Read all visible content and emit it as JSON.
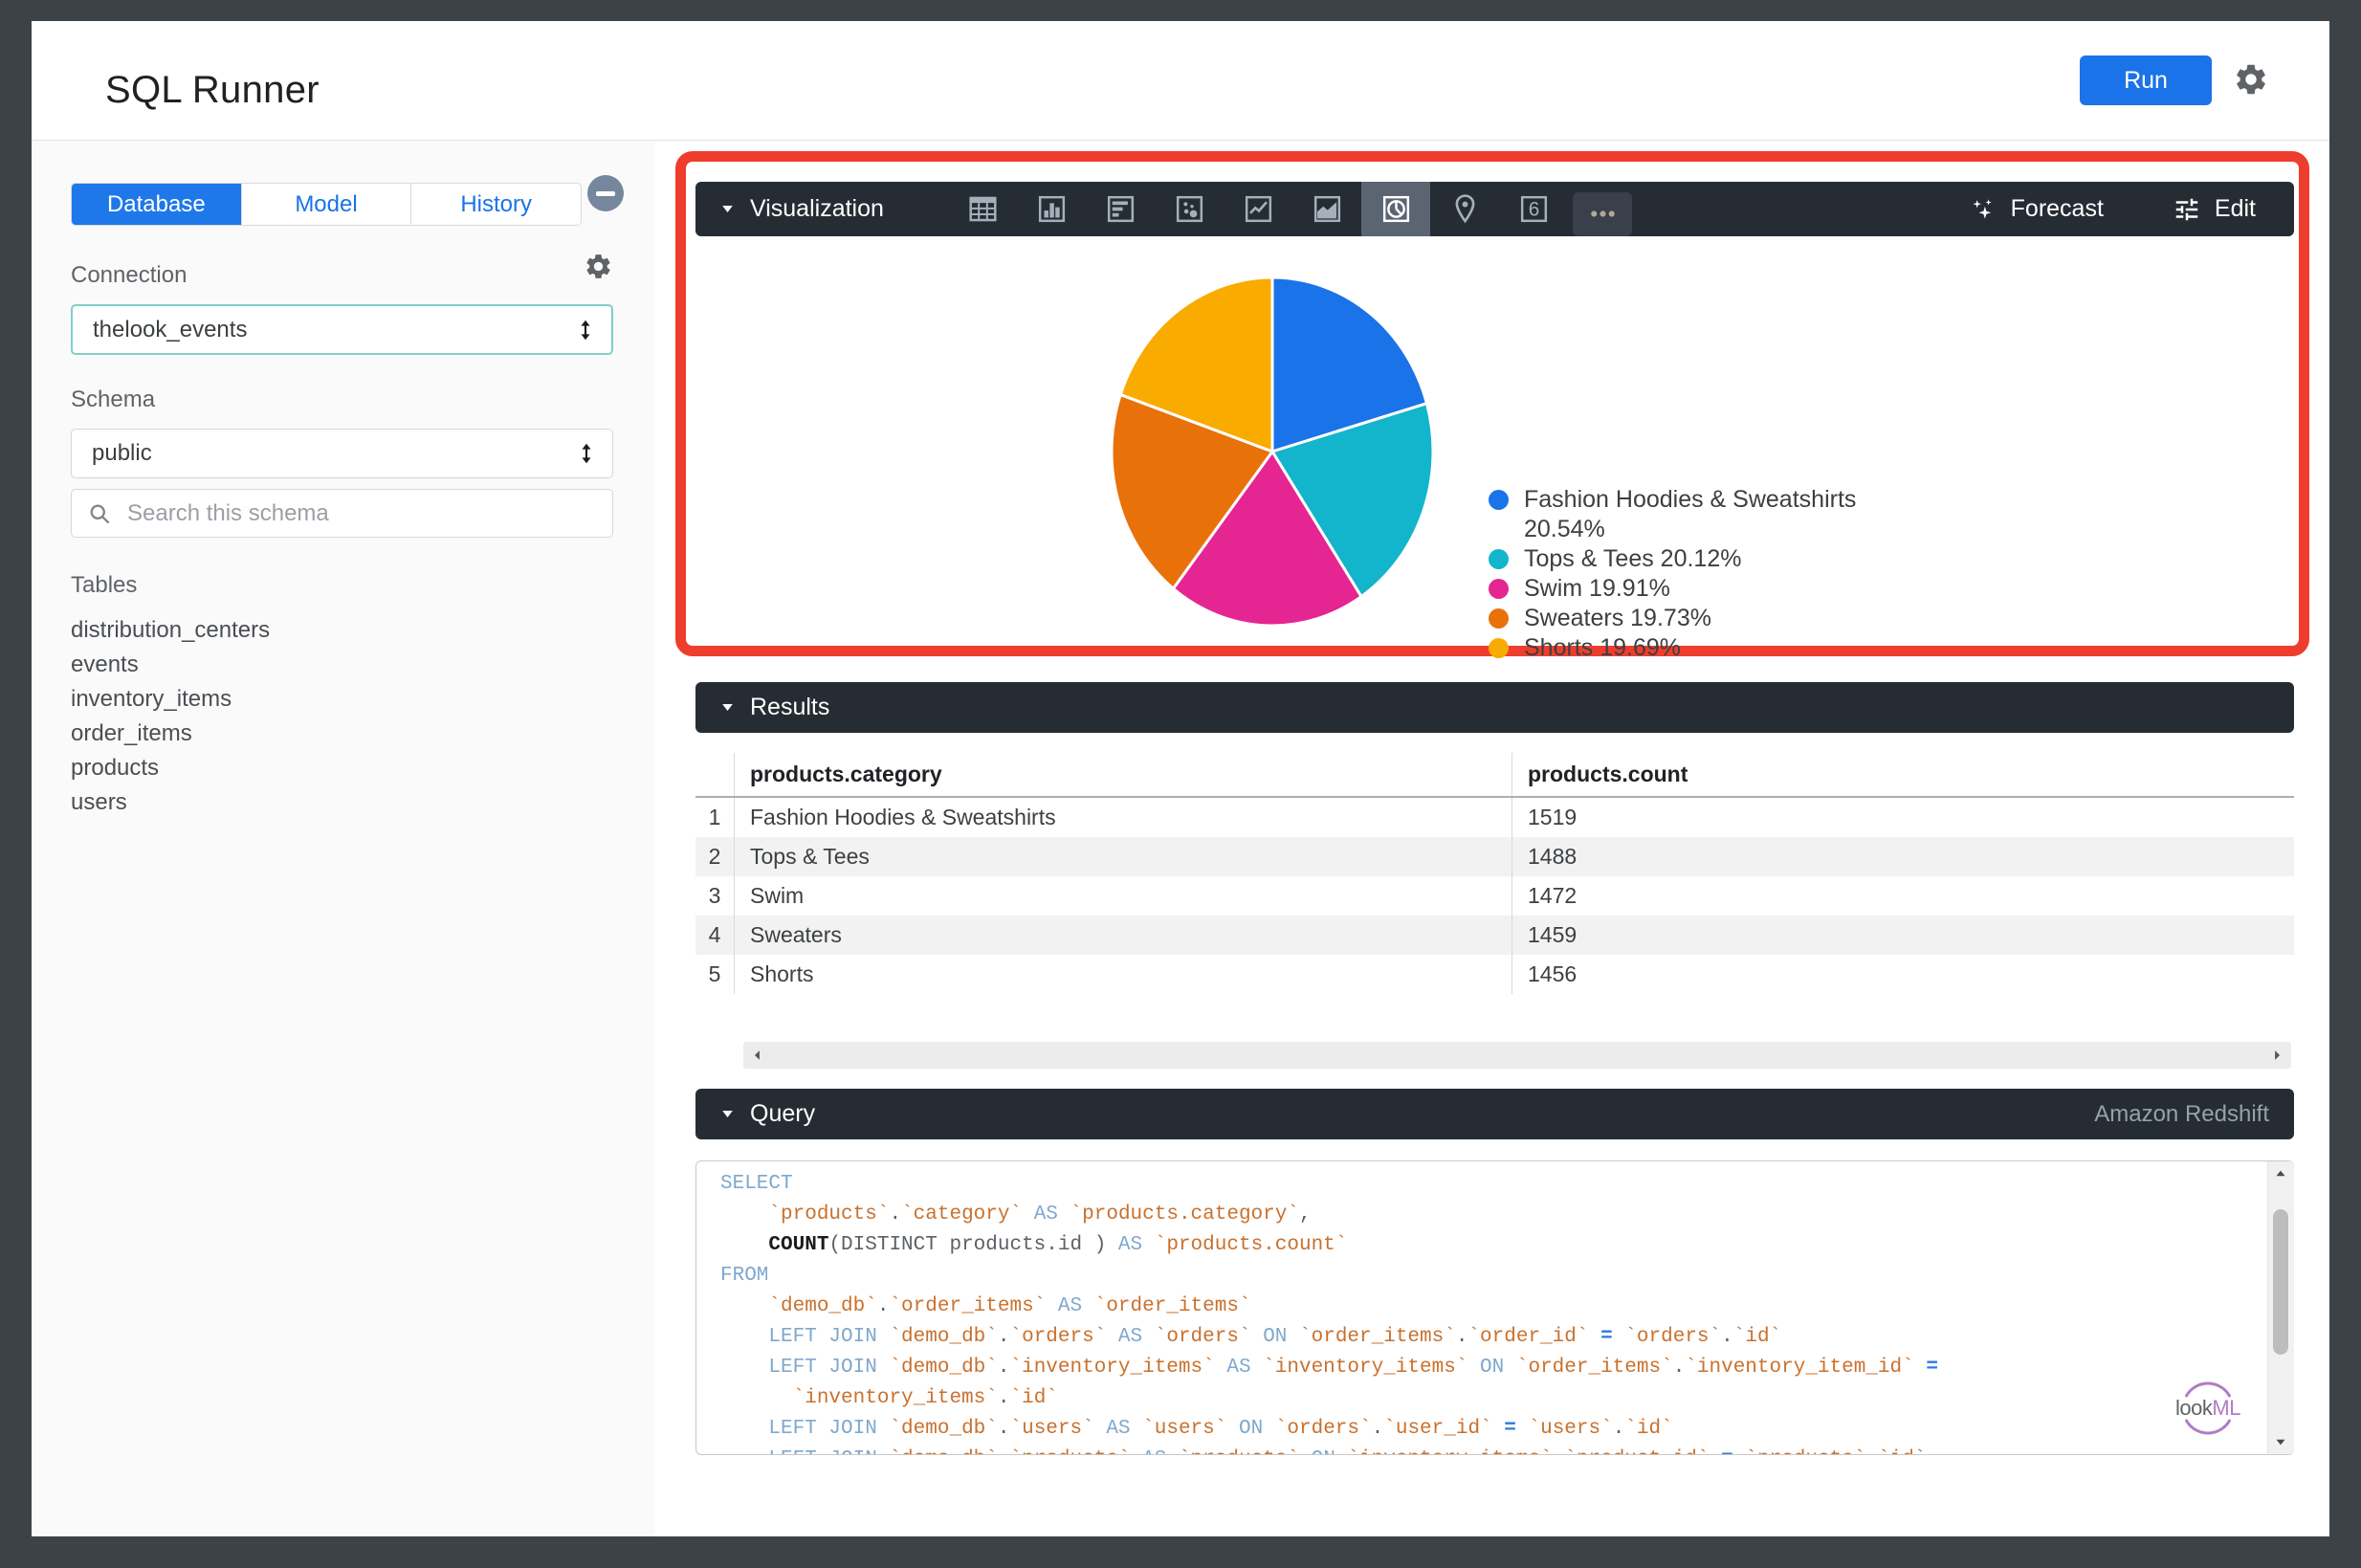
{
  "app": {
    "title": "SQL Runner",
    "run_label": "Run"
  },
  "sidebar": {
    "tabs": [
      {
        "label": "Database",
        "active": true
      },
      {
        "label": "Model",
        "active": false
      },
      {
        "label": "History",
        "active": false
      }
    ],
    "connection": {
      "label": "Connection",
      "value": "thelook_events"
    },
    "schema": {
      "label": "Schema",
      "value": "public"
    },
    "search": {
      "placeholder": "Search this schema"
    },
    "tables": {
      "label": "Tables",
      "items": [
        "distribution_centers",
        "events",
        "inventory_items",
        "order_items",
        "products",
        "users"
      ]
    }
  },
  "viz": {
    "title": "Visualization",
    "icons": [
      {
        "name": "table-chart"
      },
      {
        "name": "column-chart"
      },
      {
        "name": "bar-chart"
      },
      {
        "name": "scatter-chart"
      },
      {
        "name": "line-chart"
      },
      {
        "name": "area-chart"
      },
      {
        "name": "pie-chart",
        "selected": true
      },
      {
        "name": "map-chart"
      },
      {
        "name": "single-value"
      },
      {
        "name": "more-options"
      }
    ],
    "forecast_label": "Forecast",
    "edit_label": "Edit"
  },
  "chart_data": {
    "type": "pie",
    "title": "",
    "categories": [
      "Fashion Hoodies & Sweatshirts",
      "Tops & Tees",
      "Swim",
      "Sweaters",
      "Shorts"
    ],
    "values": [
      20.54,
      20.12,
      19.91,
      19.73,
      19.69
    ],
    "counts": [
      1519,
      1488,
      1472,
      1459,
      1456
    ],
    "colors": [
      "#1a73e8",
      "#12b5cb",
      "#e52592",
      "#e8710a",
      "#f9ab00"
    ],
    "legend_position": "right",
    "start_angle_deg": 0,
    "unit": "%"
  },
  "results": {
    "title": "Results",
    "columns": [
      "products.category",
      "products.count"
    ],
    "rows": [
      [
        "Fashion Hoodies & Sweatshirts",
        "1519"
      ],
      [
        "Tops & Tees",
        "1488"
      ],
      [
        "Swim",
        "1472"
      ],
      [
        "Sweaters",
        "1459"
      ],
      [
        "Shorts",
        "1456"
      ]
    ]
  },
  "query": {
    "title": "Query",
    "dialect": "Amazon Redshift",
    "sql_lines": [
      [
        [
          "kw",
          "SELECT"
        ]
      ],
      [
        [
          "pl",
          "    "
        ],
        [
          "id",
          "`products`"
        ],
        [
          "pn",
          "."
        ],
        [
          "id",
          "`category`"
        ],
        [
          "pl",
          " "
        ],
        [
          "kw",
          "AS"
        ],
        [
          "pl",
          " "
        ],
        [
          "id",
          "`products.category`"
        ],
        [
          "pn",
          ","
        ]
      ],
      [
        [
          "pl",
          "    "
        ],
        [
          "fn",
          "COUNT"
        ],
        [
          "pn",
          "("
        ],
        [
          "pl",
          "DISTINCT products.id "
        ],
        [
          "pn",
          ")"
        ],
        [
          "pl",
          " "
        ],
        [
          "kw",
          "AS"
        ],
        [
          "pl",
          " "
        ],
        [
          "id",
          "`products.count`"
        ]
      ],
      [
        [
          "kw",
          "FROM"
        ]
      ],
      [
        [
          "pl",
          "    "
        ],
        [
          "id",
          "`demo_db`"
        ],
        [
          "pn",
          "."
        ],
        [
          "id",
          "`order_items`"
        ],
        [
          "pl",
          " "
        ],
        [
          "kw",
          "AS"
        ],
        [
          "pl",
          " "
        ],
        [
          "id",
          "`order_items`"
        ]
      ],
      [
        [
          "pl",
          "    "
        ],
        [
          "kw",
          "LEFT JOIN"
        ],
        [
          "pl",
          " "
        ],
        [
          "id",
          "`demo_db`"
        ],
        [
          "pn",
          "."
        ],
        [
          "id",
          "`orders`"
        ],
        [
          "pl",
          " "
        ],
        [
          "kw",
          "AS"
        ],
        [
          "pl",
          " "
        ],
        [
          "id",
          "`orders`"
        ],
        [
          "pl",
          " "
        ],
        [
          "kw",
          "ON"
        ],
        [
          "pl",
          " "
        ],
        [
          "id",
          "`order_items`"
        ],
        [
          "pn",
          "."
        ],
        [
          "id",
          "`order_id`"
        ],
        [
          "pl",
          " "
        ],
        [
          "op",
          "="
        ],
        [
          "pl",
          " "
        ],
        [
          "id",
          "`orders`"
        ],
        [
          "pn",
          "."
        ],
        [
          "id",
          "`id`"
        ]
      ],
      [
        [
          "pl",
          "    "
        ],
        [
          "kw",
          "LEFT JOIN"
        ],
        [
          "pl",
          " "
        ],
        [
          "id",
          "`demo_db`"
        ],
        [
          "pn",
          "."
        ],
        [
          "id",
          "`inventory_items`"
        ],
        [
          "pl",
          " "
        ],
        [
          "kw",
          "AS"
        ],
        [
          "pl",
          " "
        ],
        [
          "id",
          "`inventory_items`"
        ],
        [
          "pl",
          " "
        ],
        [
          "kw",
          "ON"
        ],
        [
          "pl",
          " "
        ],
        [
          "id",
          "`order_items`"
        ],
        [
          "pn",
          "."
        ],
        [
          "id",
          "`inventory_item_id`"
        ],
        [
          "pl",
          " "
        ],
        [
          "op",
          "="
        ]
      ],
      [
        [
          "pl",
          "      "
        ],
        [
          "id",
          "`inventory_items`"
        ],
        [
          "pn",
          "."
        ],
        [
          "id",
          "`id`"
        ]
      ],
      [
        [
          "pl",
          "    "
        ],
        [
          "kw",
          "LEFT JOIN"
        ],
        [
          "pl",
          " "
        ],
        [
          "id",
          "`demo_db`"
        ],
        [
          "pn",
          "."
        ],
        [
          "id",
          "`users`"
        ],
        [
          "pl",
          " "
        ],
        [
          "kw",
          "AS"
        ],
        [
          "pl",
          " "
        ],
        [
          "id",
          "`users`"
        ],
        [
          "pl",
          " "
        ],
        [
          "kw",
          "ON"
        ],
        [
          "pl",
          " "
        ],
        [
          "id",
          "`orders`"
        ],
        [
          "pn",
          "."
        ],
        [
          "id",
          "`user_id`"
        ],
        [
          "pl",
          " "
        ],
        [
          "op",
          "="
        ],
        [
          "pl",
          " "
        ],
        [
          "id",
          "`users`"
        ],
        [
          "pn",
          "."
        ],
        [
          "id",
          "`id`"
        ]
      ],
      [
        [
          "pl",
          "    "
        ],
        [
          "kw",
          "LEFT JOIN"
        ],
        [
          "pl",
          " "
        ],
        [
          "id",
          "`demo_db`"
        ],
        [
          "pn",
          "."
        ],
        [
          "id",
          "`products`"
        ],
        [
          "pl",
          " "
        ],
        [
          "kw",
          "AS"
        ],
        [
          "pl",
          " "
        ],
        [
          "id",
          "`products`"
        ],
        [
          "pl",
          " "
        ],
        [
          "kw",
          "ON"
        ],
        [
          "pl",
          " "
        ],
        [
          "id",
          "`inventory_items`"
        ],
        [
          "pn",
          "."
        ],
        [
          "id",
          "`product_id`"
        ],
        [
          "pl",
          " "
        ],
        [
          "op",
          "="
        ],
        [
          "pl",
          " "
        ],
        [
          "id",
          "`products`"
        ],
        [
          "pn",
          "."
        ],
        [
          "id",
          "`id`"
        ]
      ]
    ]
  },
  "branding": {
    "look": "look",
    "ml": "ML"
  }
}
